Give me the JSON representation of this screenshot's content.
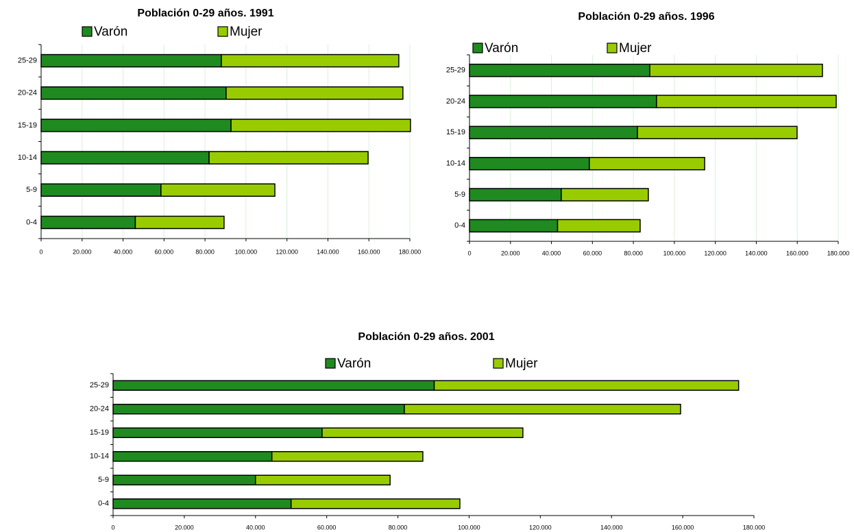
{
  "chart_data": [
    {
      "type": "bar",
      "title": "Población 0-29 años. 1991",
      "orientation": "horizontal",
      "stacked": true,
      "categories": [
        "0-4",
        "5-9",
        "10-14",
        "15-19",
        "20-24",
        "25-29"
      ],
      "series": [
        {
          "name": "Varón",
          "color": "#1f8a1f",
          "values": [
            46000,
            58500,
            82000,
            92700,
            90300,
            88000
          ]
        },
        {
          "name": "Mujer",
          "color": "#99cc00",
          "values": [
            43300,
            55600,
            77600,
            87600,
            86300,
            86600
          ]
        }
      ],
      "xlim": [
        0,
        180000
      ],
      "xticks": [
        0,
        {
          "value": 20000,
          "label": "20.000"
        },
        {
          "value": 40000,
          "label": "40.000"
        },
        {
          "value": 60000,
          "label": "60.000"
        },
        {
          "value": 80000,
          "label": "80.000"
        },
        {
          "value": 100000,
          "label": "100.000"
        },
        {
          "value": 120000,
          "label": "120.000"
        },
        {
          "value": 140000,
          "label": "140.000"
        },
        {
          "value": 160000,
          "label": "160.000"
        },
        {
          "value": 180000,
          "label": "180.000"
        }
      ],
      "grid": true,
      "legend": "top"
    },
    {
      "type": "bar",
      "title": "Población 0-29 años. 1996",
      "orientation": "horizontal",
      "stacked": true,
      "categories": [
        "0-4",
        "5-9",
        "10-14",
        "15-19",
        "20-24",
        "25-29"
      ],
      "series": [
        {
          "name": "Varón",
          "color": "#1f8a1f",
          "values": [
            43000,
            44800,
            58500,
            82000,
            91300,
            88000
          ]
        },
        {
          "name": "Mujer",
          "color": "#99cc00",
          "values": [
            40300,
            42500,
            56300,
            77900,
            87700,
            84300
          ]
        }
      ],
      "xlim": [
        0,
        180000
      ],
      "xticks": [
        0,
        {
          "value": 20000,
          "label": "20.000"
        },
        {
          "value": 40000,
          "label": "40.000"
        },
        {
          "value": 60000,
          "label": "60.000"
        },
        {
          "value": 80000,
          "label": "80.000"
        },
        {
          "value": 100000,
          "label": "100.000"
        },
        {
          "value": 120000,
          "label": "120.000"
        },
        {
          "value": 140000,
          "label": "140.000"
        },
        {
          "value": 160000,
          "label": "160.000"
        },
        {
          "value": 180000,
          "label": "180.000"
        }
      ],
      "grid": true,
      "legend": "top"
    },
    {
      "type": "bar",
      "title": "Población 0-29 años. 2001",
      "orientation": "horizontal",
      "stacked": true,
      "categories": [
        "0-4",
        "5-9",
        "10-14",
        "15-19",
        "20-24",
        "25-29"
      ],
      "series": [
        {
          "name": "Varón",
          "color": "#1f8a1f",
          "values": [
            50000,
            40000,
            44600,
            58700,
            81800,
            90200
          ]
        },
        {
          "name": "Mujer",
          "color": "#99cc00",
          "values": [
            47400,
            37800,
            42400,
            56400,
            77600,
            85500
          ]
        }
      ],
      "xlim": [
        0,
        180000
      ],
      "xticks": [
        0,
        {
          "value": 20000,
          "label": "20.000"
        },
        {
          "value": 40000,
          "label": "40.000"
        },
        {
          "value": 60000,
          "label": "60.000"
        },
        {
          "value": 80000,
          "label": "80.000"
        },
        {
          "value": 100000,
          "label": "100.000"
        },
        {
          "value": 120000,
          "label": "120.000"
        },
        {
          "value": 140000,
          "label": "140.000"
        },
        {
          "value": 160000,
          "label": "160.000"
        },
        {
          "value": 180000,
          "label": "180.000"
        }
      ],
      "grid": false,
      "legend": "top"
    }
  ]
}
